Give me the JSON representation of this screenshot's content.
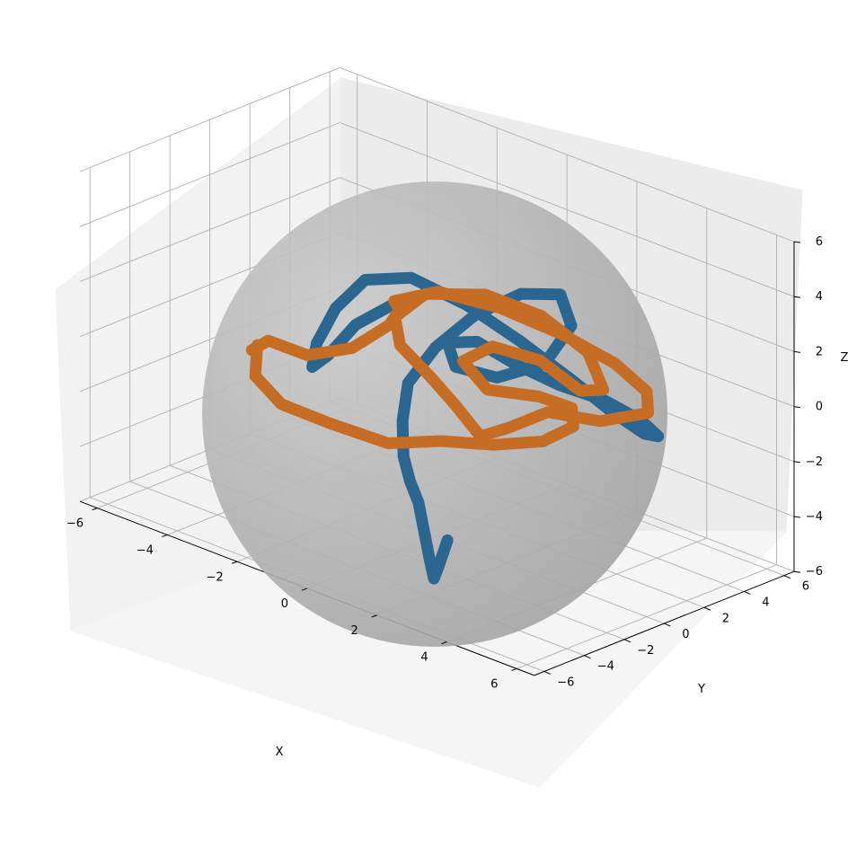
{
  "chart_data": {
    "type": "line3d",
    "title": "",
    "xlabel": "X",
    "ylabel": "Y",
    "zlabel": "Z",
    "xlim": [
      -6.5,
      6.5
    ],
    "ylim": [
      -6.5,
      6.5
    ],
    "zlim": [
      -6,
      6
    ],
    "xticks": [
      -6,
      -4,
      -2,
      0,
      2,
      4,
      6
    ],
    "yticks": [
      -6,
      -4,
      -2,
      0,
      2,
      4,
      6
    ],
    "zticks": [
      -6,
      -4,
      -2,
      0,
      2,
      4,
      6
    ],
    "xtick_labels": [
      "−6",
      "−4",
      "−2",
      "0",
      "2",
      "4",
      "6"
    ],
    "ytick_labels": [
      "−6",
      "−4",
      "−2",
      "0",
      "2",
      "4",
      "6"
    ],
    "ztick_labels": [
      "−6",
      "−4",
      "−2",
      "0",
      "2",
      "4",
      "6"
    ],
    "grid": true,
    "sphere": {
      "center": [
        0,
        0,
        0
      ],
      "radius": 5,
      "color": "#a6a6a6"
    },
    "series": [
      {
        "color": "#2a6690",
        "points": [
          [
            2.7,
            -4.2,
            -3.6
          ],
          [
            2.8,
            -4.8,
            -4.3
          ],
          [
            3.0,
            -5.4,
            -4.5
          ],
          [
            3.0,
            -5.6,
            -3.8
          ],
          [
            2.6,
            -5.2,
            -3.0
          ],
          [
            2.1,
            -4.6,
            -2.4
          ],
          [
            1.4,
            -3.8,
            -2.2
          ],
          [
            0.7,
            -2.9,
            -1.9
          ],
          [
            0.1,
            -1.9,
            -1.2
          ],
          [
            -0.2,
            -1.1,
            -0.2
          ],
          [
            -0.1,
            0.1,
            0.8
          ],
          [
            0.4,
            1.2,
            1.9
          ],
          [
            1.2,
            2.1,
            2.8
          ],
          [
            2.1,
            2.5,
            3.1
          ],
          [
            2.7,
            2.0,
            2.4
          ],
          [
            2.5,
            1.0,
            1.2
          ],
          [
            1.6,
            0.2,
            0.5
          ],
          [
            0.7,
            -0.3,
            0.6
          ],
          [
            0.3,
            0.0,
            1.2
          ],
          [
            0.8,
            0.6,
            1.3
          ],
          [
            1.8,
            0.8,
            0.9
          ],
          [
            3.0,
            0.9,
            0.7
          ],
          [
            4.1,
            1.2,
            0.6
          ],
          [
            5.0,
            1.5,
            0.2
          ],
          [
            5.3,
            1.8,
            -0.3
          ],
          [
            4.9,
            1.8,
            -0.4
          ],
          [
            3.9,
            1.9,
            -0.1
          ],
          [
            2.6,
            2.1,
            0.4
          ],
          [
            1.0,
            2.4,
            0.9
          ],
          [
            -0.7,
            2.7,
            1.3
          ],
          [
            -2.4,
            2.9,
            1.4
          ],
          [
            -3.6,
            2.7,
            0.8
          ],
          [
            -4.1,
            2.1,
            -0.3
          ],
          [
            -4.3,
            1.5,
            -1.5
          ],
          [
            -4.2,
            1.1,
            -2.2
          ],
          [
            -3.8,
            1.2,
            -1.6
          ],
          [
            -3.3,
            1.7,
            -0.4
          ],
          [
            -2.6,
            2.4,
            0.5
          ]
        ]
      },
      {
        "color": "#c56d25",
        "points": [
          [
            -4.8,
            -0.6,
            -1.2
          ],
          [
            -4.4,
            -1.4,
            -1.9
          ],
          [
            -3.2,
            -2.2,
            -2.1
          ],
          [
            -1.6,
            -2.6,
            -1.9
          ],
          [
            0.2,
            -2.8,
            -1.7
          ],
          [
            1.5,
            -2.4,
            -1.1
          ],
          [
            2.7,
            -1.9,
            -0.8
          ],
          [
            3.6,
            -1.0,
            -0.5
          ],
          [
            3.9,
            0.0,
            -0.1
          ],
          [
            3.4,
            0.8,
            0.1
          ],
          [
            2.4,
            0.9,
            0.0
          ],
          [
            1.1,
            0.6,
            -0.3
          ],
          [
            0.4,
            0.6,
            0.4
          ],
          [
            0.9,
            1.2,
            1.0
          ],
          [
            2.2,
            1.3,
            1.1
          ],
          [
            3.3,
            1.4,
            0.5
          ],
          [
            3.5,
            2.2,
            0.4
          ],
          [
            2.6,
            3.0,
            1.1
          ],
          [
            1.1,
            3.3,
            1.6
          ],
          [
            -0.4,
            3.1,
            1.7
          ],
          [
            -1.7,
            2.4,
            1.3
          ],
          [
            -2.0,
            1.4,
            0.6
          ],
          [
            -1.4,
            0.6,
            0.1
          ],
          [
            -0.3,
            0.2,
            -0.4
          ],
          [
            0.7,
            -0.3,
            -0.8
          ],
          [
            1.7,
            -0.8,
            -1.3
          ],
          [
            2.3,
            -0.4,
            -0.8
          ],
          [
            3.0,
            0.3,
            -0.1
          ],
          [
            4.1,
            1.0,
            -0.1
          ],
          [
            4.9,
            2.0,
            0.3
          ],
          [
            4.4,
            2.8,
            0.6
          ],
          [
            3.2,
            3.3,
            0.9
          ],
          [
            1.6,
            3.5,
            1.1
          ],
          [
            -0.2,
            3.5,
            1.2
          ],
          [
            -1.8,
            3.2,
            1.1
          ],
          [
            -2.6,
            2.4,
            0.6
          ],
          [
            -2.1,
            1.8,
            0.7
          ],
          [
            -2.0,
            1.1,
            0.4
          ],
          [
            -2.6,
            0.3,
            -0.5
          ],
          [
            -3.6,
            -0.2,
            -1.1
          ],
          [
            -4.6,
            -0.4,
            -1.0
          ],
          [
            -4.9,
            -0.7,
            -1.4
          ]
        ]
      }
    ]
  }
}
